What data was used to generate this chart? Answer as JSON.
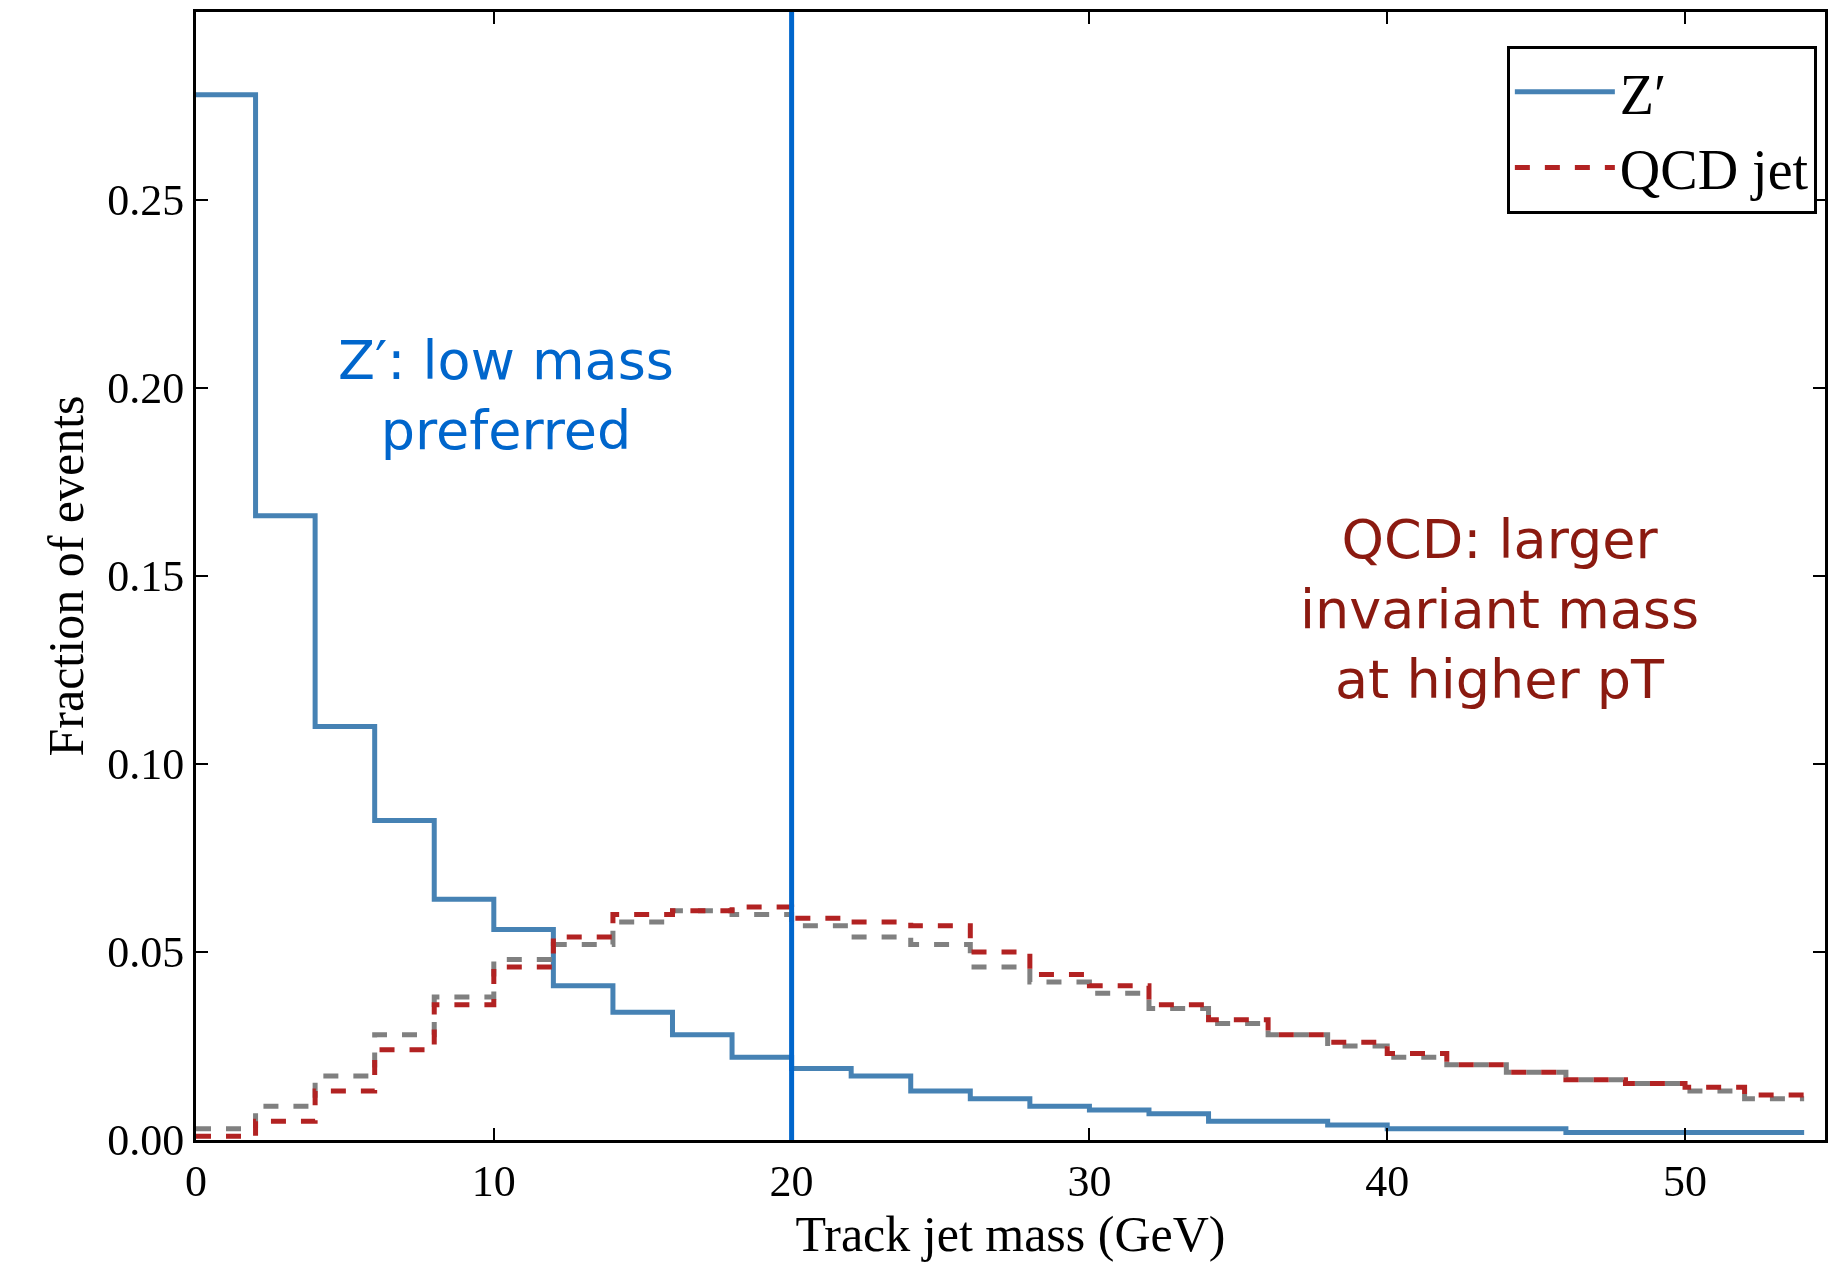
{
  "chart_data": {
    "type": "histogram",
    "xlabel": "Track jet mass (GeV)",
    "ylabel": "Fraction of events",
    "bins": [
      0,
      2,
      4,
      6,
      8,
      10,
      12,
      14,
      16,
      18,
      20,
      22,
      24,
      26,
      28,
      30,
      32,
      34,
      36,
      38,
      40,
      42,
      44,
      46,
      48,
      50,
      52,
      54
    ],
    "series": [
      {
        "name": "Z′",
        "color": "#4682b4",
        "line_style": "solid",
        "values": [
          0.278,
          0.166,
          0.11,
          0.085,
          0.064,
          0.056,
          0.041,
          0.034,
          0.028,
          0.022,
          0.019,
          0.017,
          0.013,
          0.011,
          0.009,
          0.008,
          0.007,
          0.005,
          0.005,
          0.004,
          0.003,
          0.003,
          0.003,
          0.002,
          0.002,
          0.002,
          0.002
        ]
      },
      {
        "color": "#808080",
        "line_style": "dashed",
        "values": [
          0.003,
          0.009,
          0.017,
          0.028,
          0.038,
          0.048,
          0.052,
          0.058,
          0.061,
          0.06,
          0.057,
          0.054,
          0.052,
          0.046,
          0.042,
          0.039,
          0.035,
          0.031,
          0.028,
          0.025,
          0.022,
          0.02,
          0.018,
          0.016,
          0.015,
          0.013,
          0.011
        ]
      },
      {
        "name": "QCD jet",
        "color": "#b22222",
        "line_style": "dashed",
        "values": [
          0.001,
          0.005,
          0.013,
          0.024,
          0.036,
          0.046,
          0.054,
          0.06,
          0.061,
          0.062,
          0.059,
          0.058,
          0.057,
          0.05,
          0.044,
          0.041,
          0.036,
          0.032,
          0.028,
          0.026,
          0.023,
          0.02,
          0.018,
          0.016,
          0.015,
          0.014,
          0.012
        ]
      }
    ],
    "ref_lines": [
      {
        "axis": "x",
        "value": 20,
        "color": "#0066cc"
      }
    ],
    "annotations": [
      "Z′: low mass preferred",
      "QCD: larger invariant mass at higher pT"
    ],
    "xlim": [
      0,
      54.7
    ],
    "xticks": [
      0,
      10,
      20,
      30,
      40,
      50
    ],
    "ylim": [
      0,
      0.3
    ],
    "yticks": [
      {
        "value": 0,
        "label": "0.00"
      },
      {
        "value": 0.05,
        "label": "0.05"
      },
      {
        "value": 0.1,
        "label": "0.10"
      },
      {
        "value": 0.15,
        "label": "0.15"
      },
      {
        "value": 0.2,
        "label": "0.20"
      },
      {
        "value": 0.25,
        "label": "0.25"
      }
    ],
    "legend": "top right"
  }
}
